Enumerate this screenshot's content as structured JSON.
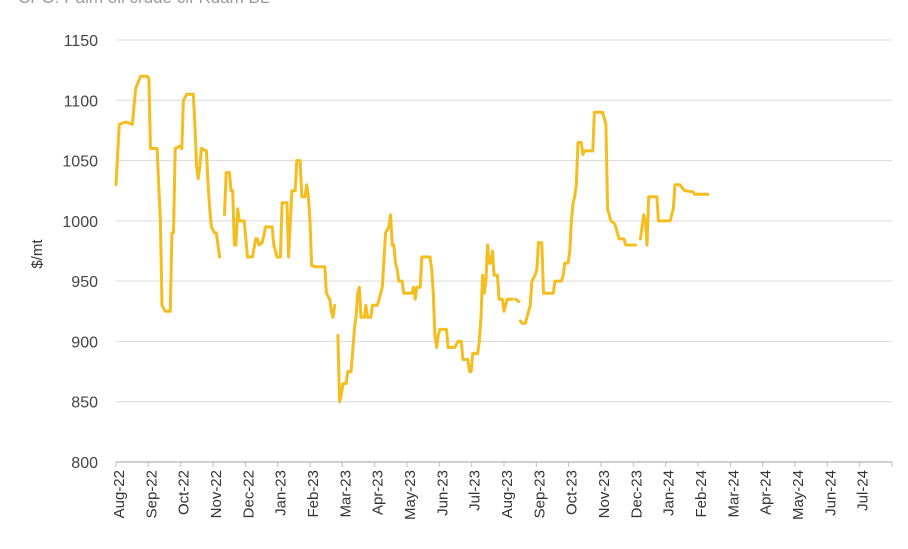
{
  "chart_data": {
    "type": "line",
    "title": "CPO: Palm oil crude cif Rdam BL",
    "ylabel": "$/mt",
    "xlabel": "",
    "ylim": [
      800,
      1150
    ],
    "yticks": [
      "800",
      "850",
      "900",
      "950",
      "1000",
      "1050",
      "1100",
      "1150"
    ],
    "xticks": [
      "Aug-22",
      "Sep-22",
      "Oct-22",
      "Nov-22",
      "Dec-22",
      "Jan-23",
      "Feb-23",
      "Mar-23",
      "Apr-23",
      "May-23",
      "Jun-23",
      "Jul-23",
      "Aug-23",
      "Sep-23",
      "Oct-23",
      "Nov-23",
      "Dec-23",
      "Jan-24",
      "Feb-24",
      "Mar-24",
      "Apr-24",
      "May-24",
      "Jun-24",
      "Jul-24"
    ],
    "grid": true,
    "legend": "none",
    "colors": {
      "line": "#F5BD1F",
      "grid": "#d9d9d9",
      "axis": "#bfbfbf"
    },
    "series": [
      {
        "values_note": "",
        "segments": [
          [
            [
              0,
              1030
            ],
            [
              0.1,
              1080
            ],
            [
              0.3,
              1082
            ],
            [
              0.5,
              1080
            ],
            [
              0.6,
              1110
            ],
            [
              0.75,
              1120
            ],
            [
              0.95,
              1120
            ],
            [
              1.0,
              1118
            ],
            [
              1.05,
              1060
            ],
            [
              1.25,
              1060
            ],
            [
              1.3,
              1030
            ],
            [
              1.35,
              1000
            ],
            [
              1.4,
              930
            ],
            [
              1.5,
              925
            ],
            [
              1.65,
              925
            ],
            [
              1.68,
              960
            ],
            [
              1.7,
              990
            ],
            [
              1.75,
              990
            ],
            [
              1.8,
              1060
            ],
            [
              1.95,
              1062
            ],
            [
              2.0,
              1060
            ],
            [
              2.05,
              1100
            ],
            [
              2.15,
              1105
            ],
            [
              2.35,
              1105
            ],
            [
              2.4,
              1080
            ],
            [
              2.45,
              1045
            ],
            [
              2.5,
              1035
            ],
            [
              2.55,
              1045
            ],
            [
              2.6,
              1060
            ],
            [
              2.75,
              1058
            ],
            [
              2.8,
              1030
            ],
            [
              2.85,
              1010
            ],
            [
              2.9,
              995
            ],
            [
              3.0,
              990
            ],
            [
              3.05,
              990
            ],
            [
              3.15,
              970
            ]
          ],
          [
            [
              3.3,
              1005
            ],
            [
              3.35,
              1040
            ],
            [
              3.45,
              1040
            ],
            [
              3.5,
              1025
            ],
            [
              3.55,
              1025
            ],
            [
              3.6,
              980
            ],
            [
              3.65,
              980
            ],
            [
              3.7,
              1010
            ],
            [
              3.75,
              1000
            ],
            [
              3.9,
              1000
            ],
            [
              4.0,
              970
            ],
            [
              4.15,
              970
            ],
            [
              4.25,
              985
            ],
            [
              4.3,
              985
            ],
            [
              4.35,
              980
            ],
            [
              4.45,
              982
            ],
            [
              4.55,
              995
            ],
            [
              4.75,
              995
            ],
            [
              4.8,
              980
            ],
            [
              4.9,
              970
            ],
            [
              5.0,
              970
            ],
            [
              5.05,
              1015
            ],
            [
              5.2,
              1015
            ],
            [
              5.25,
              970
            ],
            [
              5.35,
              1025
            ],
            [
              5.45,
              1025
            ],
            [
              5.5,
              1050
            ],
            [
              5.6,
              1050
            ],
            [
              5.65,
              1020
            ],
            [
              5.75,
              1020
            ],
            [
              5.8,
              1030
            ],
            [
              5.85,
              1020
            ],
            [
              5.9,
              1000
            ],
            [
              5.95,
              963
            ],
            [
              6.05,
              962
            ],
            [
              6.35,
              962
            ],
            [
              6.4,
              940
            ],
            [
              6.5,
              935
            ],
            [
              6.55,
              925
            ],
            [
              6.6,
              920
            ],
            [
              6.65,
              930
            ]
          ],
          [
            [
              6.75,
              905
            ],
            [
              6.8,
              850
            ],
            [
              6.85,
              855
            ],
            [
              6.9,
              865
            ],
            [
              7.0,
              865
            ],
            [
              7.05,
              875
            ],
            [
              7.15,
              875
            ],
            [
              7.25,
              910
            ],
            [
              7.3,
              920
            ],
            [
              7.35,
              940
            ],
            [
              7.4,
              945
            ],
            [
              7.45,
              920
            ],
            [
              7.55,
              920
            ],
            [
              7.6,
              930
            ],
            [
              7.65,
              920
            ],
            [
              7.75,
              920
            ],
            [
              7.8,
              930
            ],
            [
              7.95,
              930
            ],
            [
              8.0,
              935
            ],
            [
              8.1,
              945
            ],
            [
              8.2,
              990
            ],
            [
              8.3,
              995
            ],
            [
              8.35,
              1005
            ],
            [
              8.4,
              980
            ],
            [
              8.45,
              980
            ],
            [
              8.5,
              965
            ],
            [
              8.55,
              960
            ],
            [
              8.6,
              950
            ],
            [
              8.7,
              950
            ],
            [
              8.75,
              940
            ],
            [
              8.9,
              940
            ],
            [
              9.0,
              940
            ],
            [
              9.05,
              945
            ],
            [
              9.1,
              935
            ],
            [
              9.15,
              945
            ],
            [
              9.2,
              945
            ],
            [
              9.25,
              945
            ],
            [
              9.3,
              970
            ],
            [
              9.5,
              970
            ],
            [
              9.55,
              970
            ],
            [
              9.6,
              960
            ],
            [
              9.65,
              940
            ],
            [
              9.7,
              905
            ],
            [
              9.75,
              895
            ],
            [
              9.8,
              905
            ],
            [
              9.85,
              910
            ],
            [
              10.05,
              910
            ],
            [
              10.1,
              895
            ],
            [
              10.3,
              895
            ],
            [
              10.4,
              900
            ],
            [
              10.5,
              900
            ],
            [
              10.55,
              885
            ],
            [
              10.7,
              885
            ],
            [
              10.75,
              875
            ],
            [
              10.8,
              875
            ],
            [
              10.85,
              890
            ],
            [
              11.0,
              890
            ],
            [
              11.05,
              900
            ],
            [
              11.1,
              920
            ],
            [
              11.15,
              955
            ],
            [
              11.2,
              940
            ],
            [
              11.25,
              950
            ],
            [
              11.3,
              980
            ],
            [
              11.35,
              965
            ],
            [
              11.4,
              965
            ],
            [
              11.45,
              975
            ],
            [
              11.5,
              955
            ],
            [
              11.6,
              955
            ],
            [
              11.65,
              935
            ],
            [
              11.75,
              935
            ],
            [
              11.8,
              925
            ],
            [
              11.85,
              930
            ],
            [
              11.9,
              935
            ],
            [
              12.05,
              935
            ]
          ],
          [
            [
              12.15,
              935
            ],
            [
              12.25,
              933
            ]
          ],
          [
            [
              12.3,
              917
            ],
            [
              12.35,
              915
            ],
            [
              12.45,
              915
            ],
            [
              12.5,
              920
            ],
            [
              12.6,
              930
            ],
            [
              12.65,
              950
            ],
            [
              12.75,
              955
            ],
            [
              12.8,
              960
            ],
            [
              12.85,
              982
            ],
            [
              12.95,
              982
            ],
            [
              13.0,
              940
            ],
            [
              13.3,
              940
            ],
            [
              13.35,
              950
            ],
            [
              13.55,
              950
            ],
            [
              13.6,
              955
            ],
            [
              13.65,
              965
            ],
            [
              13.75,
              965
            ],
            [
              13.8,
              975
            ],
            [
              13.85,
              1000
            ],
            [
              13.9,
              1015
            ],
            [
              13.95,
              1020
            ],
            [
              14.0,
              1030
            ],
            [
              14.05,
              1065
            ],
            [
              14.15,
              1065
            ],
            [
              14.2,
              1055
            ],
            [
              14.25,
              1058
            ],
            [
              14.5,
              1058
            ],
            [
              14.55,
              1090
            ],
            [
              14.8,
              1090
            ],
            [
              14.9,
              1080
            ],
            [
              14.95,
              1010
            ],
            [
              15.05,
              1000
            ],
            [
              15.15,
              998
            ],
            [
              15.2,
              995
            ],
            [
              15.25,
              990
            ],
            [
              15.3,
              985
            ],
            [
              15.45,
              985
            ],
            [
              15.5,
              980
            ],
            [
              15.8,
              980
            ]
          ],
          [
            [
              15.95,
              985
            ],
            [
              16.05,
              1005
            ],
            [
              16.1,
              1000
            ],
            [
              16.15,
              980
            ],
            [
              16.2,
              1020
            ],
            [
              16.25,
              1020
            ],
            [
              16.45,
              1020
            ],
            [
              16.5,
              1000
            ],
            [
              16.85,
              1000
            ],
            [
              16.9,
              1005
            ],
            [
              16.95,
              1010
            ],
            [
              17.0,
              1030
            ],
            [
              17.15,
              1030
            ],
            [
              17.2,
              1028
            ],
            [
              17.3,
              1025
            ],
            [
              17.55,
              1024
            ],
            [
              17.6,
              1022
            ],
            [
              18.0,
              1022
            ]
          ]
        ]
      }
    ]
  }
}
